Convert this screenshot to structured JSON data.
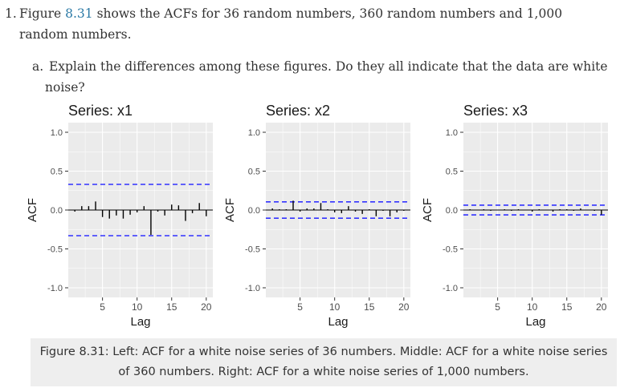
{
  "question1": {
    "number": "1.",
    "text_before_link": "Figure ",
    "link": "8.31",
    "text_after_link_line1": " shows the ACFs for 36 random numbers, 360 random numbers and 1,000",
    "line2": "random numbers."
  },
  "question_a": {
    "letter": "a.",
    "line1": "Explain the differences among these figures. Do they all indicate that the data are white",
    "line2": "noise?"
  },
  "caption": {
    "line1": "Figure 8.31: Left: ACF for a white noise series of 36 numbers. Middle: ACF for a white noise series",
    "line2": "of 360 numbers. Right: ACF for a white noise series of 1,000 numbers."
  },
  "chart_data": [
    {
      "type": "bar",
      "title": "Series: x1",
      "xlabel": "Lag",
      "ylabel": "ACF",
      "x": [
        1,
        2,
        3,
        4,
        5,
        6,
        7,
        8,
        9,
        10,
        11,
        12,
        13,
        14,
        15,
        16,
        17,
        18,
        19,
        20
      ],
      "values": [
        -0.02,
        0.05,
        0.05,
        0.11,
        -0.09,
        -0.11,
        -0.07,
        -0.11,
        -0.06,
        -0.03,
        0.05,
        -0.32,
        -0.02,
        -0.07,
        0.07,
        0.06,
        -0.14,
        -0.04,
        0.09,
        -0.08
      ],
      "ci": 0.33,
      "ylim": [
        -1.0,
        1.0
      ],
      "yticks": [
        "1.0",
        "0.5",
        "0.0",
        "-0.5",
        "-1.0"
      ],
      "xticks": [
        "5",
        "10",
        "15",
        "20"
      ],
      "grid": true,
      "colors": {
        "bars": "#000000",
        "ci": "#3333ff",
        "panel": "#ebebeb",
        "grid": "#ffffff"
      }
    },
    {
      "type": "bar",
      "title": "Series: x2",
      "xlabel": "Lag",
      "ylabel": "ACF",
      "x": [
        1,
        2,
        3,
        4,
        5,
        6,
        7,
        8,
        9,
        10,
        11,
        12,
        13,
        14,
        15,
        16,
        17,
        18,
        19,
        20
      ],
      "values": [
        0.02,
        0.01,
        0.01,
        0.12,
        -0.02,
        0.02,
        0.02,
        0.09,
        0.01,
        -0.03,
        -0.04,
        0.05,
        -0.02,
        -0.05,
        0.01,
        -0.08,
        -0.01,
        -0.08,
        -0.03,
        -0.01
      ],
      "ci": 0.105,
      "ylim": [
        -1.0,
        1.0
      ],
      "yticks": [
        "1.0",
        "0.5",
        "0.0",
        "-0.5",
        "-1.0"
      ],
      "xticks": [
        "5",
        "10",
        "15",
        "20"
      ],
      "grid": true,
      "colors": {
        "bars": "#000000",
        "ci": "#3333ff",
        "panel": "#ebebeb",
        "grid": "#ffffff"
      }
    },
    {
      "type": "bar",
      "title": "Series: x3",
      "xlabel": "Lag",
      "ylabel": "ACF",
      "x": [
        1,
        2,
        3,
        4,
        5,
        6,
        7,
        8,
        9,
        10,
        11,
        12,
        13,
        14,
        15,
        16,
        17,
        18,
        19,
        20
      ],
      "values": [
        0.01,
        0.0,
        0.01,
        -0.01,
        0.0,
        0.01,
        -0.01,
        0.01,
        0.0,
        -0.02,
        0.01,
        0.0,
        -0.02,
        0.01,
        0.01,
        -0.01,
        0.02,
        0.0,
        -0.01,
        -0.06
      ],
      "ci": 0.062,
      "ylim": [
        -1.0,
        1.0
      ],
      "yticks": [
        "1.0",
        "0.5",
        "0.0",
        "-0.5",
        "-1.0"
      ],
      "xticks": [
        "5",
        "10",
        "15",
        "20"
      ],
      "grid": true,
      "colors": {
        "bars": "#000000",
        "ci": "#3333ff",
        "panel": "#ebebeb",
        "grid": "#ffffff"
      }
    }
  ]
}
